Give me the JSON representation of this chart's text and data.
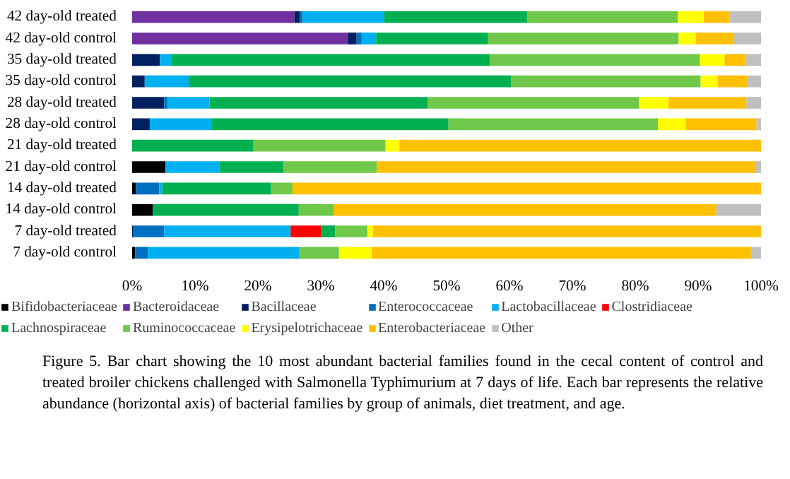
{
  "chart_data": {
    "type": "bar",
    "orientation": "horizontal",
    "stacked": true,
    "categories": [
      "42 day-old treated",
      "42 day-old control",
      "35 day-old treated",
      "35 day-old control",
      "28 day-old treated",
      "28 day-old control",
      "21 day-old treated",
      "21 day-old control",
      "14 day-old treated",
      "14 day-old control",
      "7 day-old treated",
      "7 day-old control"
    ],
    "series": [
      {
        "name": "Bifidobacteriaceae",
        "color": "#000000",
        "values": [
          0,
          0,
          0,
          0,
          0,
          0,
          0,
          5.3,
          0.6,
          3.3,
          0,
          0.5
        ]
      },
      {
        "name": "Bacteroidaceae",
        "color": "#7030a0",
        "values": [
          25.8,
          34.3,
          0,
          0,
          0,
          0,
          0,
          0,
          0,
          0,
          0,
          0
        ]
      },
      {
        "name": "Bacillaceae",
        "color": "#002060",
        "values": [
          0.9,
          1.4,
          4.4,
          2.0,
          5.1,
          2.8,
          0,
          0,
          0,
          0,
          0.2,
          0
        ]
      },
      {
        "name": "Enterococcaceae",
        "color": "#0070c0",
        "values": [
          0.4,
          0.8,
          0,
          0,
          0.5,
          0,
          0,
          0,
          3.7,
          0,
          4.9,
          2.0
        ]
      },
      {
        "name": "Lactobacillaceae",
        "color": "#00b0f0",
        "values": [
          13.0,
          2.3,
          1.9,
          7.0,
          6.7,
          9.9,
          0,
          8.6,
          0.5,
          0,
          20.1,
          24.1
        ]
      },
      {
        "name": "Clostridiaceae",
        "color": "#ff0000",
        "values": [
          0,
          0,
          0,
          0,
          0,
          0,
          0,
          0,
          0,
          0,
          4.8,
          0
        ]
      },
      {
        "name": "Lachnospiraceae",
        "color": "#00b050",
        "values": [
          22.7,
          17.8,
          50.6,
          51.3,
          34.7,
          37.6,
          19.3,
          10.2,
          17.3,
          23.2,
          2.3,
          0
        ]
      },
      {
        "name": "Ruminococcaceae",
        "color": "#70c84a",
        "values": [
          24.0,
          30.3,
          33.4,
          30.1,
          33.6,
          33.3,
          21.0,
          14.8,
          3.4,
          5.6,
          5.1,
          6.3
        ]
      },
      {
        "name": "Erysipelotrichaceae",
        "color": "#ffff00",
        "values": [
          4.1,
          2.7,
          3.9,
          2.7,
          4.7,
          4.4,
          2.2,
          0,
          0,
          0,
          0.9,
          5.2
        ]
      },
      {
        "name": "Enterobacteriaceae",
        "color": "#ffc000",
        "values": [
          4.1,
          6.1,
          3.4,
          4.8,
          12.4,
          11.3,
          57.5,
          60.2,
          74.5,
          60.8,
          61.7,
          60.3
        ]
      },
      {
        "name": "Other",
        "color": "#bfbfbf",
        "values": [
          5.0,
          4.3,
          2.4,
          2.1,
          2.3,
          0.7,
          0,
          0.9,
          0,
          7.1,
          0,
          1.6
        ]
      }
    ],
    "xlim": [
      0,
      100
    ],
    "xticks": [
      {
        "value": 0,
        "label": "0%"
      },
      {
        "value": 10,
        "label": "10%"
      },
      {
        "value": 20,
        "label": "20%"
      },
      {
        "value": 30,
        "label": "30%"
      },
      {
        "value": 40,
        "label": "40%"
      },
      {
        "value": 50,
        "label": "50%"
      },
      {
        "value": 60,
        "label": "60%"
      },
      {
        "value": 70,
        "label": "70%"
      },
      {
        "value": 80,
        "label": "80%"
      },
      {
        "value": 90,
        "label": "90%"
      },
      {
        "value": 100,
        "label": "100%"
      }
    ],
    "legend": "bottom",
    "grid": false,
    "annotations": [
      "Figure 5. Bar chart showing the 10 most abundant bacterial families found in the cecal content of control and treated broiler chickens challenged with Salmonella Typhimurium at 7 days of life. Each bar represents the relative abundance (horizontal axis) of bacterial families by group of animals, diet treatment, and age."
    ]
  }
}
